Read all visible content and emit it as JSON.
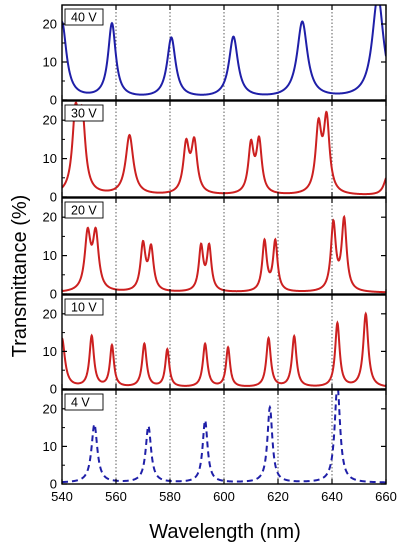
{
  "chart_data": {
    "type": "line",
    "xlabel": "Wavelength (nm)",
    "ylabel": "Transmittance (%)",
    "xlim": [
      540,
      660
    ],
    "x_ticks": [
      "540",
      "560",
      "580",
      "600",
      "620",
      "640",
      "660"
    ],
    "y_ticks": [
      "0",
      "10",
      "20"
    ],
    "reference_lines_x": [
      560,
      580,
      600,
      620,
      640
    ],
    "panels": [
      {
        "label": "40 V",
        "color": "#1f1fa8",
        "style": "solid",
        "ylim": [
          0,
          25
        ],
        "peaks": [
          {
            "x": 540.0,
            "y": 20.0,
            "w": 2.0
          },
          {
            "x": 558.5,
            "y": 19.5,
            "w": 1.7
          },
          {
            "x": 580.5,
            "y": 15.8,
            "w": 1.9
          },
          {
            "x": 603.5,
            "y": 16.0,
            "w": 2.0
          },
          {
            "x": 629.0,
            "y": 20.0,
            "w": 2.3
          },
          {
            "x": 657.0,
            "y": 27.0,
            "w": 2.5
          }
        ]
      },
      {
        "label": "30 V",
        "color": "#cc2020",
        "style": "solid",
        "ylim": [
          0,
          25
        ],
        "peaks": [
          {
            "x": 545.0,
            "y": 19.5,
            "w": 1.4
          },
          {
            "x": 547.5,
            "y": 18.5,
            "w": 1.4
          },
          {
            "x": 565.0,
            "y": 15.5,
            "w": 1.7
          },
          {
            "x": 586.0,
            "y": 12.5,
            "w": 1.3
          },
          {
            "x": 589.0,
            "y": 13.0,
            "w": 1.3
          },
          {
            "x": 610.0,
            "y": 12.5,
            "w": 1.2
          },
          {
            "x": 613.0,
            "y": 13.5,
            "w": 1.2
          },
          {
            "x": 635.0,
            "y": 17.0,
            "w": 1.3
          },
          {
            "x": 638.0,
            "y": 19.0,
            "w": 1.3
          },
          {
            "x": 660.5,
            "y": 5.0,
            "w": 1.5
          }
        ]
      },
      {
        "label": "20 V",
        "color": "#cc2020",
        "style": "solid",
        "ylim": [
          0,
          25
        ],
        "peaks": [
          {
            "x": 549.5,
            "y": 14.5,
            "w": 1.3
          },
          {
            "x": 552.5,
            "y": 14.5,
            "w": 1.3
          },
          {
            "x": 570.0,
            "y": 12.0,
            "w": 1.1
          },
          {
            "x": 573.0,
            "y": 11.0,
            "w": 1.1
          },
          {
            "x": 591.5,
            "y": 11.5,
            "w": 1.0
          },
          {
            "x": 594.5,
            "y": 11.5,
            "w": 1.0
          },
          {
            "x": 615.0,
            "y": 13.0,
            "w": 1.0
          },
          {
            "x": 619.0,
            "y": 13.0,
            "w": 1.0
          },
          {
            "x": 640.5,
            "y": 17.5,
            "w": 1.1
          },
          {
            "x": 644.5,
            "y": 18.5,
            "w": 1.1
          }
        ]
      },
      {
        "label": "10 V",
        "color": "#cc2020",
        "style": "solid",
        "ylim": [
          0,
          25
        ],
        "peaks": [
          {
            "x": 540.0,
            "y": 13.0,
            "w": 1.3
          },
          {
            "x": 551.0,
            "y": 13.5,
            "w": 1.0
          },
          {
            "x": 558.5,
            "y": 11.0,
            "w": 0.9
          },
          {
            "x": 570.5,
            "y": 11.5,
            "w": 1.0
          },
          {
            "x": 579.0,
            "y": 10.0,
            "w": 0.9
          },
          {
            "x": 593.0,
            "y": 11.5,
            "w": 1.0
          },
          {
            "x": 601.5,
            "y": 10.5,
            "w": 0.9
          },
          {
            "x": 616.5,
            "y": 13.0,
            "w": 1.0
          },
          {
            "x": 626.0,
            "y": 13.5,
            "w": 1.0
          },
          {
            "x": 642.0,
            "y": 17.0,
            "w": 1.0
          },
          {
            "x": 652.5,
            "y": 19.5,
            "w": 1.1
          }
        ]
      },
      {
        "label": "4 V",
        "color": "#1f1fa8",
        "style": "dashed",
        "ylim": [
          0,
          25
        ],
        "peaks": [
          {
            "x": 552.0,
            "y": 15.5,
            "w": 1.3
          },
          {
            "x": 572.0,
            "y": 15.0,
            "w": 1.2
          },
          {
            "x": 593.0,
            "y": 16.5,
            "w": 1.1
          },
          {
            "x": 617.0,
            "y": 20.0,
            "w": 1.1
          },
          {
            "x": 642.0,
            "y": 26.0,
            "w": 1.2
          }
        ]
      }
    ]
  }
}
